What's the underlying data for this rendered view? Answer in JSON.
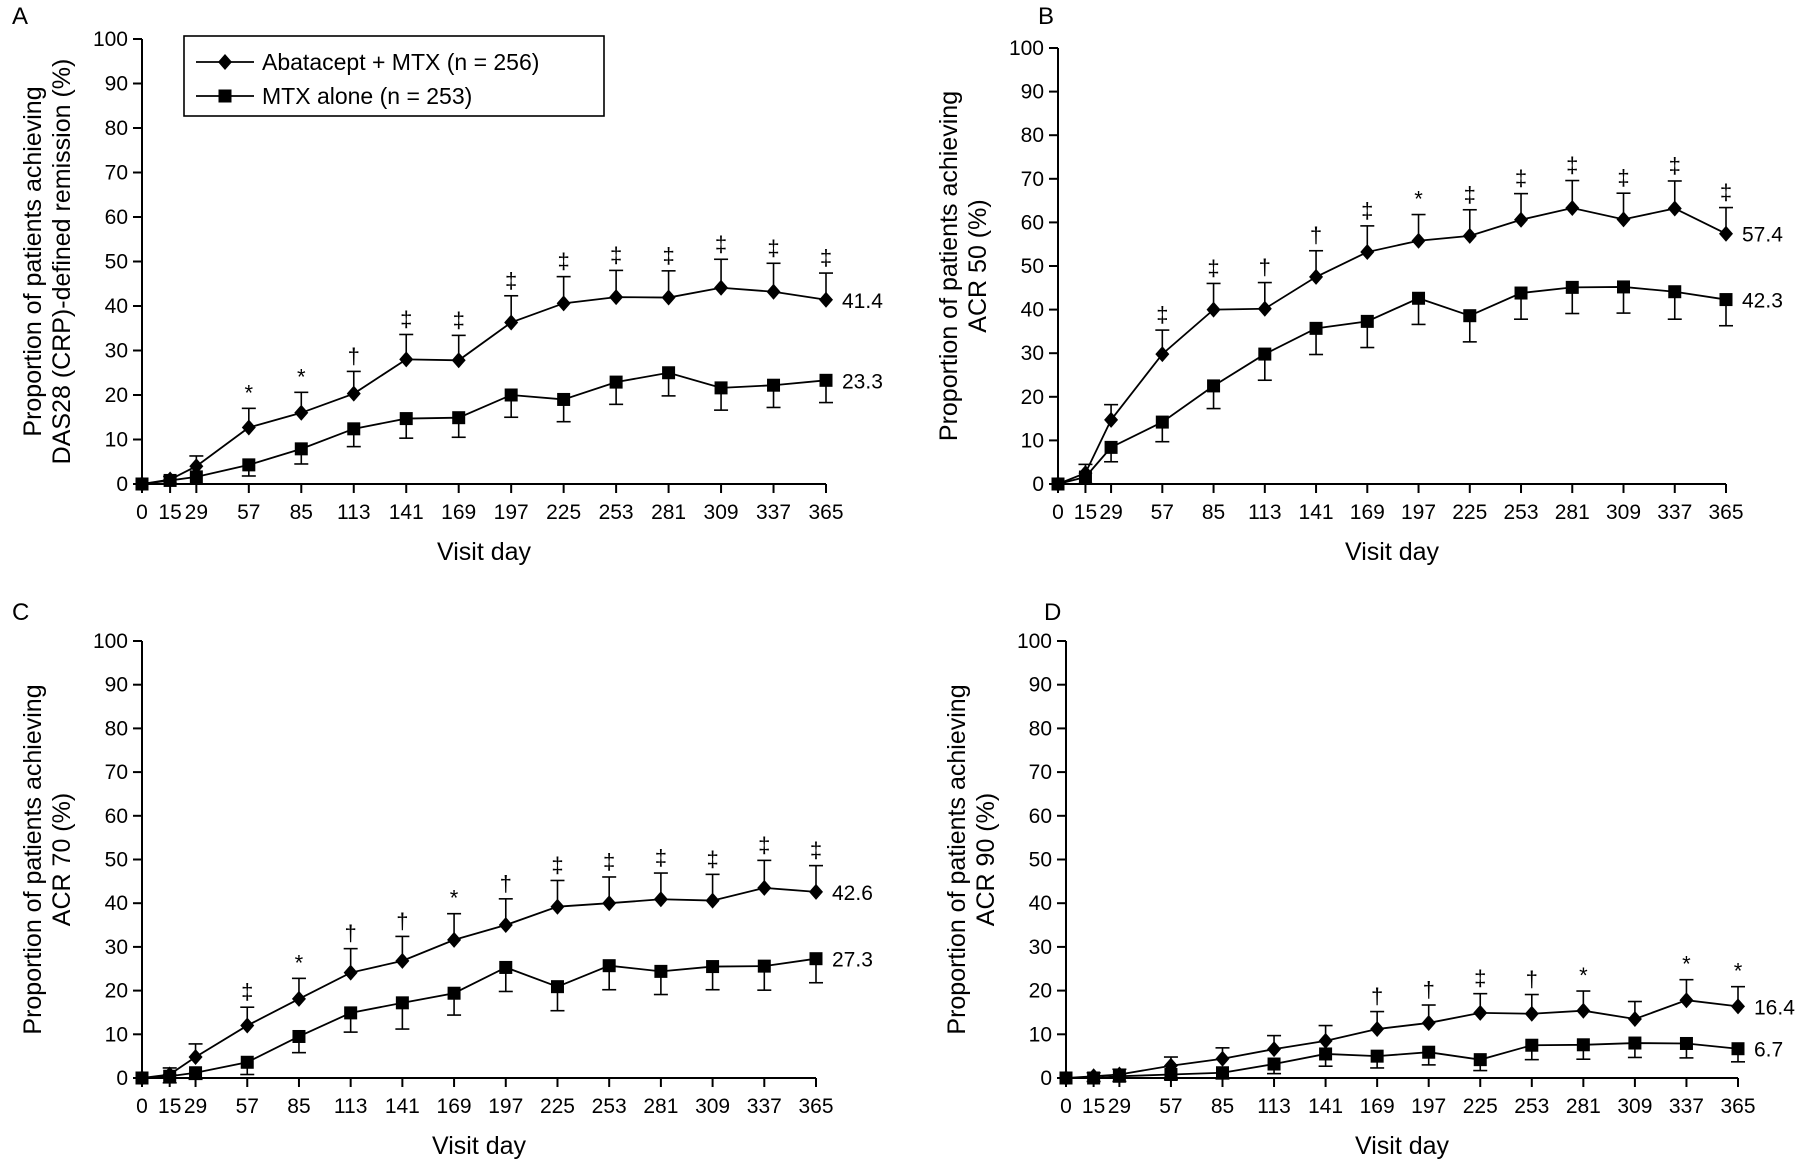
{
  "chart_data": [
    {
      "panel": "A",
      "type": "line",
      "ylabel": [
        "Proportion of patients achieving",
        "DAS28 (CRP)-defined remission (%)"
      ],
      "xlabel": "Visit day",
      "x": [
        0,
        15,
        29,
        57,
        85,
        113,
        141,
        169,
        197,
        225,
        253,
        281,
        309,
        337,
        365
      ],
      "ylim": [
        0,
        100
      ],
      "yticks": [
        0,
        10,
        20,
        30,
        40,
        50,
        60,
        70,
        80,
        90,
        100
      ],
      "legend": true,
      "series": [
        {
          "name": "Abatacept + MTX (n = 256)",
          "marker": "diamond",
          "values": [
            0,
            1,
            4,
            12.7,
            16,
            20.3,
            28,
            27.8,
            36.3,
            40.6,
            42,
            41.9,
            44.1,
            43.2,
            41.4
          ],
          "err": [
            0,
            0.7,
            2.3,
            4.3,
            4.6,
            5,
            5.6,
            5.6,
            6,
            6,
            6,
            6,
            6.4,
            6.4,
            6
          ],
          "end_label": "41.4"
        },
        {
          "name": "MTX alone (n = 253)",
          "marker": "square",
          "values": [
            0,
            0.8,
            1.6,
            4.3,
            7.9,
            12.4,
            14.7,
            14.9,
            20,
            19,
            22.9,
            25,
            21.6,
            22.2,
            23.3
          ],
          "err": [
            0,
            0.7,
            1.6,
            2.5,
            3.4,
            4,
            4.4,
            4.4,
            5,
            5,
            5,
            5.2,
            5,
            5,
            5
          ],
          "end_label": "23.3"
        }
      ],
      "significance": [
        "",
        "",
        "",
        "*",
        "*",
        "†",
        "‡",
        "‡",
        "‡",
        "‡",
        "‡",
        "‡",
        "‡",
        "‡",
        "‡"
      ]
    },
    {
      "panel": "B",
      "type": "line",
      "ylabel": [
        "Proportion of patients achieving",
        "ACR 50 (%)"
      ],
      "xlabel": "Visit day",
      "x": [
        0,
        15,
        29,
        57,
        85,
        113,
        141,
        169,
        197,
        225,
        253,
        281,
        309,
        337,
        365
      ],
      "ylim": [
        0,
        100
      ],
      "yticks": [
        0,
        10,
        20,
        30,
        40,
        50,
        60,
        70,
        80,
        90,
        100
      ],
      "legend": false,
      "series": [
        {
          "name": "Abatacept + MTX (n = 256)",
          "marker": "diamond",
          "values": [
            0,
            2.5,
            14.7,
            29.8,
            40,
            40.2,
            47.5,
            53.2,
            55.8,
            56.9,
            60.6,
            63.3,
            60.7,
            63.2,
            57.4
          ],
          "err": [
            0,
            2,
            3.5,
            5.5,
            6,
            6,
            6,
            6,
            6,
            6,
            6,
            6.3,
            6,
            6.3,
            6
          ],
          "end_label": "57.4"
        },
        {
          "name": "MTX alone (n = 253)",
          "marker": "square",
          "values": [
            0,
            1.6,
            8.4,
            14.2,
            22.5,
            29.8,
            35.7,
            37.3,
            42.6,
            38.6,
            43.8,
            45.1,
            45.2,
            44.1,
            42.3
          ],
          "err": [
            0,
            1.5,
            3.3,
            4.5,
            5.2,
            6,
            6,
            6,
            6,
            6,
            6,
            6,
            6,
            6.3,
            6
          ],
          "end_label": "42.3"
        }
      ],
      "significance": [
        "",
        "",
        "",
        "‡",
        "‡",
        "†",
        "†",
        "‡",
        "*",
        "‡",
        "‡",
        "‡",
        "‡",
        "‡",
        "‡"
      ]
    },
    {
      "panel": "C",
      "type": "line",
      "ylabel": [
        "Proportion of patients achieving",
        "ACR 70 (%)"
      ],
      "xlabel": "Visit day",
      "x": [
        0,
        15,
        29,
        57,
        85,
        113,
        141,
        169,
        197,
        225,
        253,
        281,
        309,
        337,
        365
      ],
      "ylim": [
        0,
        100
      ],
      "yticks": [
        0,
        10,
        20,
        30,
        40,
        50,
        60,
        70,
        80,
        90,
        100
      ],
      "legend": false,
      "series": [
        {
          "name": "Abatacept + MTX (n = 256)",
          "marker": "diamond",
          "values": [
            0,
            0.8,
            4.8,
            12,
            18.1,
            24.1,
            26.8,
            31.6,
            35,
            39.2,
            40,
            40.9,
            40.6,
            43.5,
            42.6
          ],
          "err": [
            0,
            1.5,
            3,
            4.2,
            4.7,
            5.5,
            5.6,
            6,
            6,
            6,
            6,
            6,
            6,
            6.3,
            6
          ],
          "end_label": "42.6"
        },
        {
          "name": "MTX alone (n = 253)",
          "marker": "square",
          "values": [
            0,
            0.4,
            1.2,
            3.6,
            9.5,
            14.9,
            17.2,
            19.4,
            25.3,
            20.9,
            25.7,
            24.4,
            25.5,
            25.6,
            27.3
          ],
          "err": [
            0,
            1.5,
            1.5,
            2.8,
            3.7,
            4.4,
            6,
            5,
            5.5,
            5.5,
            5.5,
            5.3,
            5.3,
            5.5,
            5.5
          ],
          "end_label": "27.3"
        }
      ],
      "significance": [
        "",
        "",
        "",
        "‡",
        "*",
        "†",
        "†",
        "*",
        "†",
        "‡",
        "‡",
        "‡",
        "‡",
        "‡",
        "‡"
      ]
    },
    {
      "panel": "D",
      "type": "line",
      "ylabel": [
        "Proportion of patients achieving",
        "ACR 90 (%)"
      ],
      "xlabel": "Visit day",
      "x": [
        0,
        15,
        29,
        57,
        85,
        113,
        141,
        169,
        197,
        225,
        253,
        281,
        309,
        337,
        365
      ],
      "ylim": [
        0,
        100
      ],
      "yticks": [
        0,
        10,
        20,
        30,
        40,
        50,
        60,
        70,
        80,
        90,
        100
      ],
      "legend": false,
      "series": [
        {
          "name": "Abatacept + MTX (n = 256)",
          "marker": "diamond",
          "values": [
            0,
            0.4,
            0.8,
            2.8,
            4.4,
            6.6,
            8.5,
            11.2,
            12.6,
            14.9,
            14.7,
            15.4,
            13.5,
            17.8,
            16.4
          ],
          "err": [
            0,
            0.8,
            1.2,
            2,
            2.5,
            3.1,
            3.5,
            4,
            4.1,
            4.4,
            4.4,
            4.5,
            4,
            4.7,
            4.5
          ],
          "end_label": "16.4"
        },
        {
          "name": "MTX alone (n = 253)",
          "marker": "square",
          "values": [
            0,
            0,
            0.4,
            0.8,
            1.2,
            3.2,
            5.5,
            5,
            5.9,
            4.2,
            7.5,
            7.6,
            8,
            7.9,
            6.7
          ],
          "err": [
            0,
            0.8,
            1.2,
            1.2,
            1.4,
            2.2,
            2.8,
            2.7,
            2.9,
            2.5,
            3.3,
            3.3,
            3.3,
            3.3,
            3
          ],
          "end_label": "6.7"
        }
      ],
      "significance": [
        "",
        "",
        "",
        "",
        "",
        "",
        "",
        "†",
        "†",
        "‡",
        "†",
        "*",
        "",
        "*",
        "*"
      ]
    }
  ],
  "panels": [
    {
      "letter": "A"
    },
    {
      "letter": "B"
    },
    {
      "letter": "C"
    },
    {
      "letter": "D"
    }
  ],
  "legend": {
    "entries": [
      "Abatacept + MTX (n = 256)",
      "MTX alone (n = 253)"
    ]
  },
  "colors": {
    "line": "#000000",
    "background": "#ffffff"
  }
}
